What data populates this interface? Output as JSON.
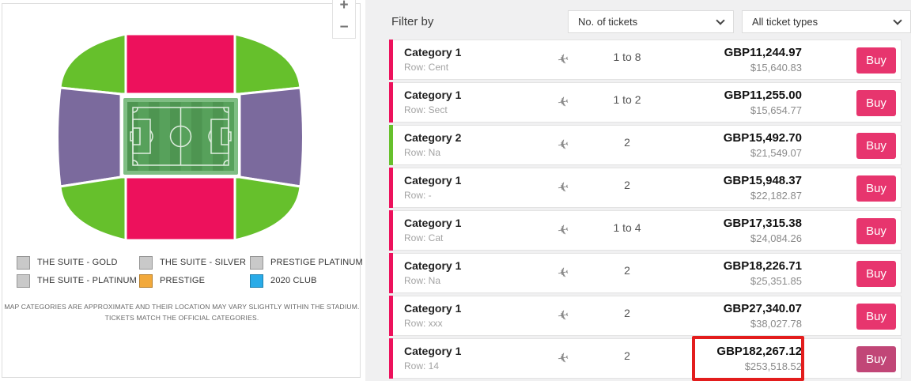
{
  "colors": {
    "category1": "#ED115C",
    "category2": "#66C02C",
    "suite": "#7B6A9D",
    "buy_normal": "#E7356E",
    "buy_hover": "#C14677",
    "pitch_frame": "#7FBE83",
    "pitch_field": "#57A15B",
    "pitch_stripe": "#4E9551",
    "pitch_lines": "#DFEEDF",
    "highlight_red": "#E31D1D"
  },
  "map_panel": {
    "zoom_in": "+",
    "zoom_out": "−",
    "legend": [
      {
        "label": "THE SUITE - GOLD",
        "color": "#c9c9c9"
      },
      {
        "label": "THE SUITE - SILVER",
        "color": "#c9c9c9"
      },
      {
        "label": "PRESTIGE PLATINUM",
        "color": "#c9c9c9"
      },
      {
        "label": "THE SUITE - PLATINUM",
        "color": "#c9c9c9"
      },
      {
        "label": "PRESTIGE",
        "color": "#F2A93B"
      },
      {
        "label": "2020 CLUB",
        "color": "#29ABE8"
      }
    ],
    "disclaimer_line1": "MAP CATEGORIES ARE APPROXIMATE AND THEIR LOCATION MAY VARY SLIGHTLY WITHIN THE STADIUM.",
    "disclaimer_line2": "TICKETS MATCH THE OFFICIAL CATEGORIES."
  },
  "filter": {
    "label": "Filter by",
    "tickets_select_value": "No. of tickets",
    "types_select_value": "All ticket types"
  },
  "buy_label": "Buy",
  "listings": [
    {
      "category": "Category 1",
      "row": "Row: Cent",
      "qty": "1 to 8",
      "gbp": "GBP11,244.97",
      "usd": "$15,640.83",
      "stripe": "#ED115C",
      "highlighted": false
    },
    {
      "category": "Category 1",
      "row": "Row: Sect",
      "qty": "1 to 2",
      "gbp": "GBP11,255.00",
      "usd": "$15,654.77",
      "stripe": "#ED115C",
      "highlighted": false
    },
    {
      "category": "Category 2",
      "row": "Row: Na",
      "qty": "2",
      "gbp": "GBP15,492.70",
      "usd": "$21,549.07",
      "stripe": "#66C02C",
      "highlighted": false
    },
    {
      "category": "Category 1",
      "row": "Row: -",
      "qty": "2",
      "gbp": "GBP15,948.37",
      "usd": "$22,182.87",
      "stripe": "#ED115C",
      "highlighted": false
    },
    {
      "category": "Category 1",
      "row": "Row: Cat",
      "qty": "1 to 4",
      "gbp": "GBP17,315.38",
      "usd": "$24,084.26",
      "stripe": "#ED115C",
      "highlighted": false
    },
    {
      "category": "Category 1",
      "row": "Row: Na",
      "qty": "2",
      "gbp": "GBP18,226.71",
      "usd": "$25,351.85",
      "stripe": "#ED115C",
      "highlighted": false
    },
    {
      "category": "Category 1",
      "row": "Row: xxx",
      "qty": "2",
      "gbp": "GBP27,340.07",
      "usd": "$38,027.78",
      "stripe": "#ED115C",
      "highlighted": false
    },
    {
      "category": "Category 1",
      "row": "Row: 14",
      "qty": "2",
      "gbp": "GBP182,267.12",
      "usd": "$253,518.52",
      "stripe": "#ED115C",
      "highlighted": true
    }
  ]
}
